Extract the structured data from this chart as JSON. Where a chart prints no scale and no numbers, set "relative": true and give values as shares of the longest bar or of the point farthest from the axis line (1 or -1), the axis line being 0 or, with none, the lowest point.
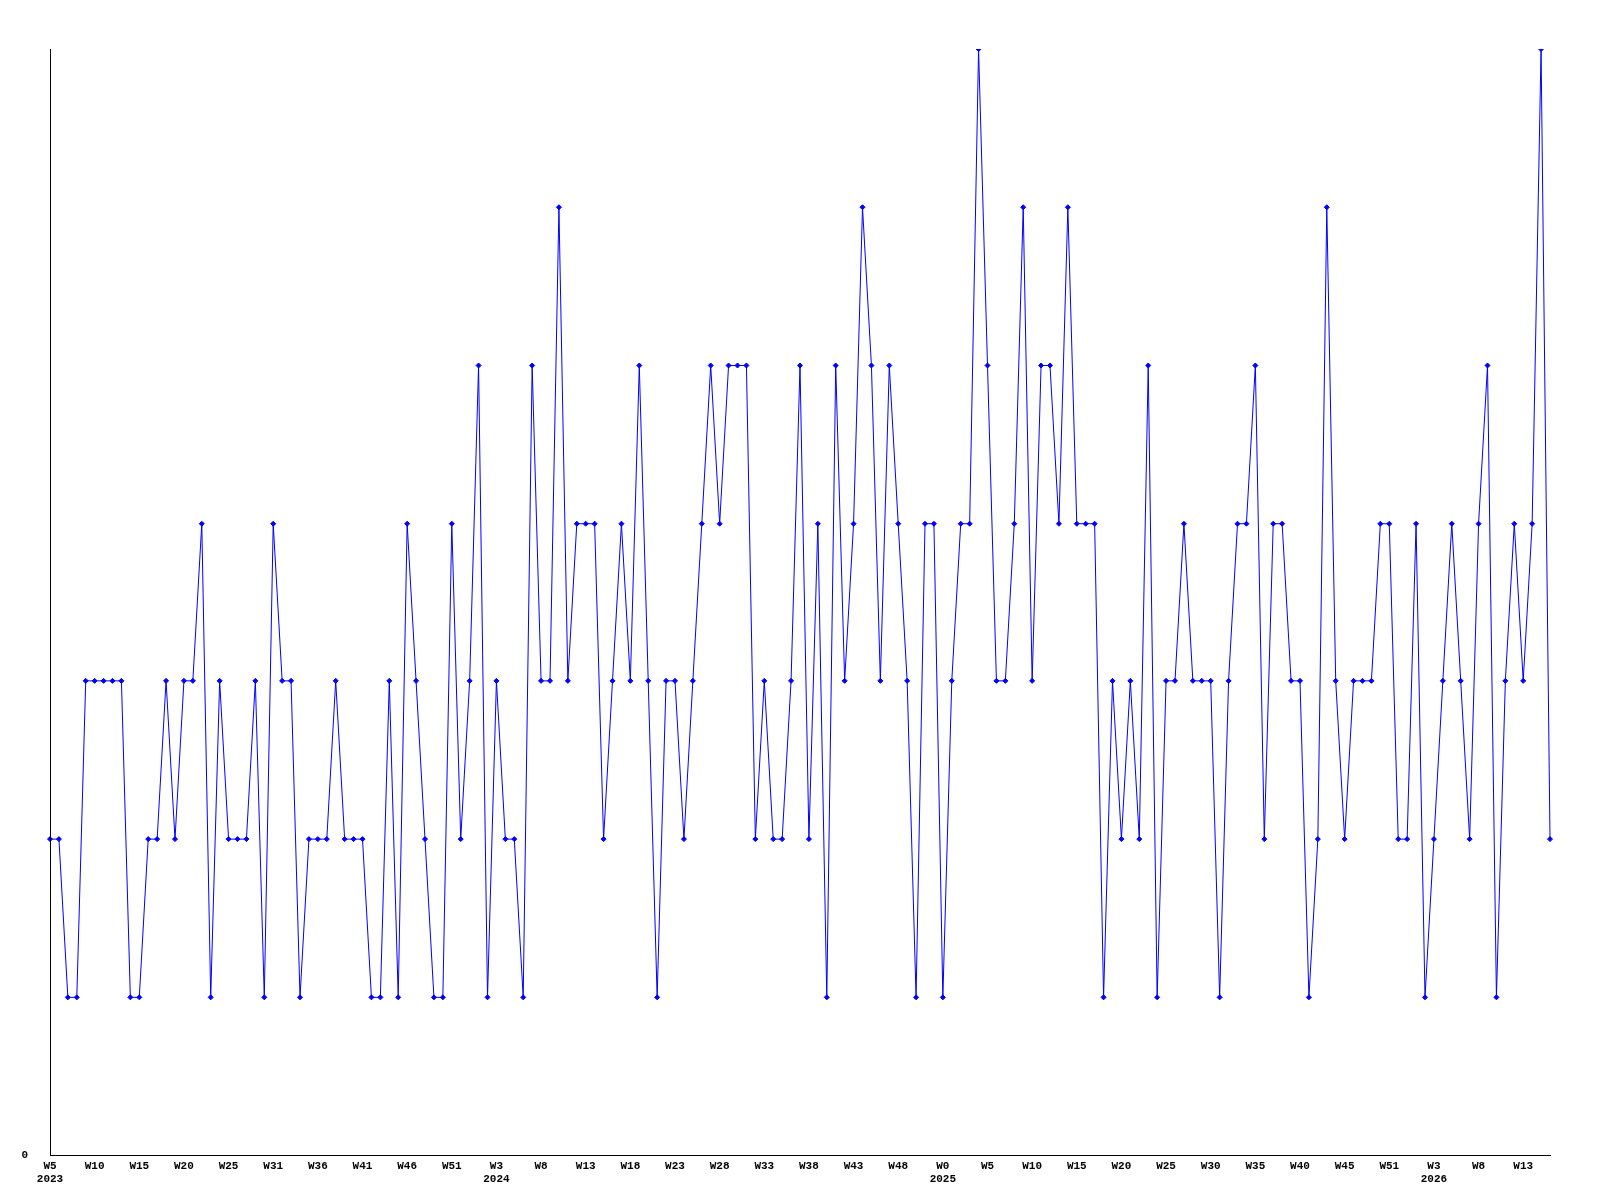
{
  "chart_data": {
    "type": "line",
    "relative": true,
    "color": "#0000ff",
    "marker": "diamond",
    "line_style": "solid",
    "grid": false,
    "legend": false,
    "annotations": [
      "0"
    ],
    "categories": [
      "W5\n2023",
      null,
      null,
      null,
      null,
      "W10",
      null,
      null,
      null,
      null,
      "W15",
      null,
      null,
      null,
      null,
      "W20",
      null,
      null,
      null,
      null,
      "W25",
      null,
      null,
      null,
      null,
      "W31",
      null,
      null,
      null,
      null,
      "W36",
      null,
      null,
      null,
      null,
      "W41",
      null,
      null,
      null,
      null,
      "W46",
      null,
      null,
      null,
      null,
      "W51",
      null,
      null,
      null,
      null,
      "W3\n2024",
      null,
      null,
      null,
      null,
      "W8",
      null,
      null,
      null,
      null,
      "W13",
      null,
      null,
      null,
      null,
      "W18",
      null,
      null,
      null,
      null,
      "W23",
      null,
      null,
      null,
      null,
      "W28",
      null,
      null,
      null,
      null,
      "W33",
      null,
      null,
      null,
      null,
      "W38",
      null,
      null,
      null,
      null,
      "W43",
      null,
      null,
      null,
      null,
      "W48",
      null,
      null,
      null,
      null,
      "W0\n2025",
      null,
      null,
      null,
      null,
      "W5",
      null,
      null,
      null,
      null,
      "W10",
      null,
      null,
      null,
      null,
      "W15",
      null,
      null,
      null,
      null,
      "W20",
      null,
      null,
      null,
      null,
      "W25",
      null,
      null,
      null,
      null,
      "W30",
      null,
      null,
      null,
      null,
      "W35",
      null,
      null,
      null,
      null,
      "W40",
      null,
      null,
      null,
      null,
      "W45",
      null,
      null,
      null,
      null,
      "W51",
      null,
      null,
      null,
      null,
      "W3\n2026",
      null,
      null,
      null,
      null,
      "W8",
      null,
      null,
      null,
      null,
      "W13",
      null,
      null,
      null
    ],
    "values": [
      0.286,
      0.286,
      0.143,
      0.143,
      0.429,
      0.429,
      0.429,
      0.429,
      0.429,
      0.143,
      0.143,
      0.286,
      0.286,
      0.429,
      0.286,
      0.429,
      0.429,
      0.571,
      0.143,
      0.429,
      0.286,
      0.286,
      0.286,
      0.429,
      0.143,
      0.571,
      0.429,
      0.429,
      0.143,
      0.286,
      0.286,
      0.286,
      0.429,
      0.286,
      0.286,
      0.286,
      0.143,
      0.143,
      0.429,
      0.143,
      0.571,
      0.429,
      0.286,
      0.143,
      0.143,
      0.571,
      0.286,
      0.429,
      0.714,
      0.143,
      0.429,
      0.286,
      0.286,
      0.143,
      0.714,
      0.429,
      0.429,
      0.857,
      0.429,
      0.571,
      0.571,
      0.571,
      0.286,
      0.429,
      0.571,
      0.429,
      0.714,
      0.429,
      0.143,
      0.429,
      0.429,
      0.286,
      0.429,
      0.571,
      0.714,
      0.571,
      0.714,
      0.714,
      0.714,
      0.286,
      0.429,
      0.286,
      0.286,
      0.429,
      0.714,
      0.286,
      0.571,
      0.143,
      0.714,
      0.429,
      0.571,
      0.857,
      0.714,
      0.429,
      0.714,
      0.571,
      0.429,
      0.143,
      0.571,
      0.571,
      0.143,
      0.429,
      0.571,
      0.571,
      1,
      0.714,
      0.429,
      0.429,
      0.571,
      0.857,
      0.429,
      0.714,
      0.714,
      0.571,
      0.857,
      0.571,
      0.571,
      0.571,
      0.143,
      0.429,
      0.286,
      0.429,
      0.286,
      0.714,
      0.143,
      0.429,
      0.429,
      0.571,
      0.429,
      0.429,
      0.429,
      0.143,
      0.429,
      0.571,
      0.571,
      0.714,
      0.286,
      0.571,
      0.571,
      0.429,
      0.429,
      0.143,
      0.286,
      0.857,
      0.429,
      0.286,
      0.429,
      0.429,
      0.429,
      0.571,
      0.571,
      0.286,
      0.286,
      0.571,
      0.143,
      0.286,
      0.429,
      0.571,
      0.429,
      0.286,
      0.571,
      0.714,
      0.143,
      0.429,
      0.571,
      0.429,
      0.571,
      1,
      0.286
    ]
  }
}
